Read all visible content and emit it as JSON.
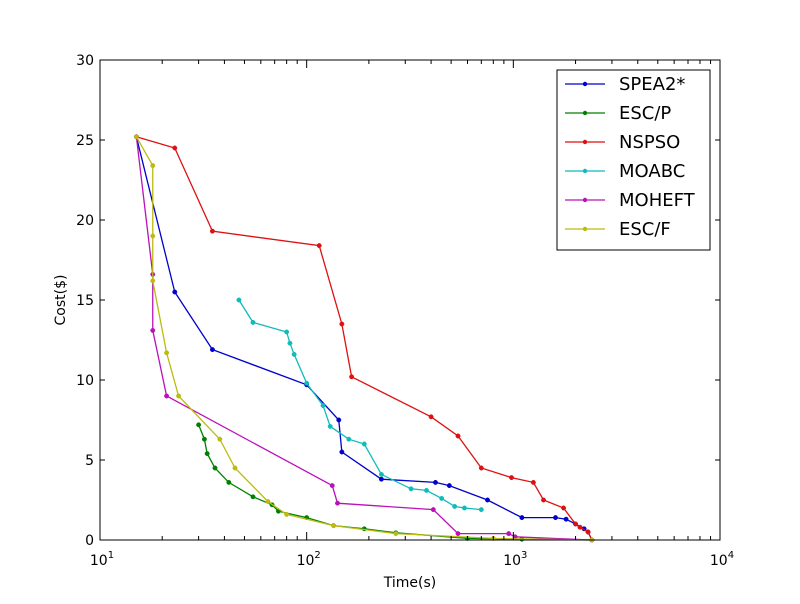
{
  "chart_data": {
    "type": "line",
    "xlabel": "Time(s)",
    "ylabel": "Cost($)",
    "xscale": "log",
    "xlim": [
      10,
      10000
    ],
    "ylim": [
      0,
      30
    ],
    "x_ticks": [
      {
        "value": 10,
        "base": "10",
        "exp": "1"
      },
      {
        "value": 100,
        "base": "10",
        "exp": "2"
      },
      {
        "value": 1000,
        "base": "10",
        "exp": "3"
      },
      {
        "value": 10000,
        "base": "10",
        "exp": "4"
      }
    ],
    "y_ticks": [
      0,
      5,
      10,
      15,
      20,
      25,
      30
    ],
    "legend": {
      "position": "upper-right"
    },
    "series": [
      {
        "name": "SPEA2*",
        "color": "#0000cc",
        "points": [
          [
            15,
            25.2
          ],
          [
            23,
            15.5
          ],
          [
            35,
            11.9
          ],
          [
            100,
            9.7
          ],
          [
            143,
            7.5
          ],
          [
            148,
            5.5
          ],
          [
            230,
            3.8
          ],
          [
            420,
            3.6
          ],
          [
            490,
            3.4
          ],
          [
            750,
            2.5
          ],
          [
            1100,
            1.4
          ],
          [
            1600,
            1.4
          ],
          [
            1800,
            1.3
          ],
          [
            2000,
            1.0
          ],
          [
            2200,
            0.7
          ],
          [
            2300,
            0.5
          ],
          [
            2400,
            0
          ]
        ]
      },
      {
        "name": "ESC/P",
        "color": "#008000",
        "points": [
          [
            30,
            7.2
          ],
          [
            32,
            6.3
          ],
          [
            33,
            5.4
          ],
          [
            36,
            4.5
          ],
          [
            42,
            3.6
          ],
          [
            55,
            2.7
          ],
          [
            68,
            2.2
          ],
          [
            73,
            1.8
          ],
          [
            100,
            1.4
          ],
          [
            135,
            0.9
          ],
          [
            190,
            0.7
          ],
          [
            270,
            0.45
          ],
          [
            600,
            0.1
          ],
          [
            1100,
            0.05
          ],
          [
            2400,
            0
          ]
        ]
      },
      {
        "name": "NSPSO",
        "color": "#dd1111",
        "points": [
          [
            15,
            25.2
          ],
          [
            23,
            24.5
          ],
          [
            35,
            19.3
          ],
          [
            115,
            18.4
          ],
          [
            148,
            13.5
          ],
          [
            165,
            10.2
          ],
          [
            400,
            7.7
          ],
          [
            540,
            6.5
          ],
          [
            700,
            4.5
          ],
          [
            980,
            3.9
          ],
          [
            1250,
            3.6
          ],
          [
            1400,
            2.5
          ],
          [
            1750,
            2.0
          ],
          [
            2000,
            1.0
          ],
          [
            2100,
            0.8
          ],
          [
            2300,
            0.5
          ],
          [
            2400,
            0
          ]
        ]
      },
      {
        "name": "MOABC",
        "color": "#11bbbb",
        "points": [
          [
            47,
            15.0
          ],
          [
            55,
            13.6
          ],
          [
            80,
            13.0
          ],
          [
            83,
            12.3
          ],
          [
            87,
            11.6
          ],
          [
            100,
            9.8
          ],
          [
            120,
            8.4
          ],
          [
            130,
            7.1
          ],
          [
            160,
            6.3
          ],
          [
            190,
            6.0
          ],
          [
            230,
            4.1
          ],
          [
            320,
            3.2
          ],
          [
            380,
            3.1
          ],
          [
            450,
            2.6
          ],
          [
            520,
            2.1
          ],
          [
            580,
            2.0
          ],
          [
            700,
            1.9
          ]
        ]
      },
      {
        "name": "MOHEFT",
        "color": "#bb11bb",
        "points": [
          [
            15,
            25.2
          ],
          [
            18,
            16.6
          ],
          [
            18,
            13.1
          ],
          [
            21,
            9.0
          ],
          [
            133,
            3.4
          ],
          [
            141,
            2.3
          ],
          [
            410,
            1.9
          ],
          [
            540,
            0.4
          ],
          [
            950,
            0.4
          ],
          [
            1020,
            0.2
          ],
          [
            2400,
            0
          ]
        ]
      },
      {
        "name": "ESC/F",
        "color": "#bbbb11",
        "points": [
          [
            15,
            25.2
          ],
          [
            18,
            23.4
          ],
          [
            18,
            19.0
          ],
          [
            18,
            16.2
          ],
          [
            21,
            11.7
          ],
          [
            24,
            9.0
          ],
          [
            38,
            6.3
          ],
          [
            45,
            4.5
          ],
          [
            65,
            2.4
          ],
          [
            80,
            1.6
          ],
          [
            135,
            0.9
          ],
          [
            270,
            0.4
          ],
          [
            800,
            0.1
          ],
          [
            2400,
            0
          ]
        ]
      }
    ]
  }
}
